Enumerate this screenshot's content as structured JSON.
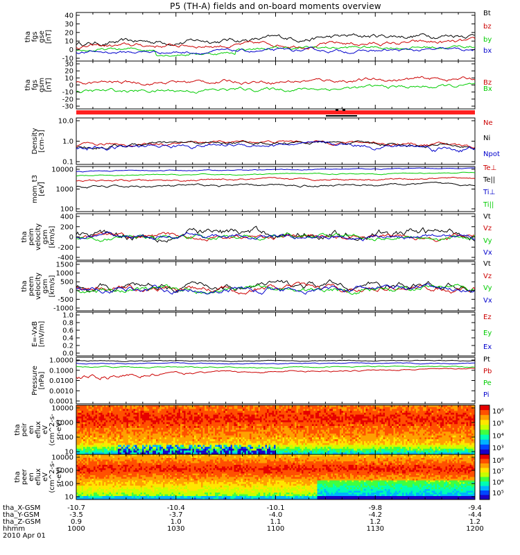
{
  "title": "P5 (TH-A) fields and on-board moments overview",
  "date": "2010 Apr 01",
  "chart_data": [
    {
      "type": "line",
      "panel": "fgs_gse",
      "ylabel": [
        "tha",
        "fgs",
        "gse",
        "[nT]"
      ],
      "yticks": [
        "40",
        "30",
        "20",
        "10",
        "0",
        "-10"
      ],
      "ylim": [
        -10,
        40
      ],
      "series": [
        {
          "name": "Bt",
          "color": "#000000"
        },
        {
          "name": "bz",
          "color": "#cc0000"
        },
        {
          "name": "by",
          "color": "#00cc00"
        },
        {
          "name": "bx",
          "color": "#0000cc"
        }
      ]
    },
    {
      "type": "line",
      "panel": "fgs_gsm",
      "ylabel": [
        "tha",
        "fgs",
        "gsm",
        "[nT]"
      ],
      "yticks": [
        "30",
        "20",
        "10",
        "0",
        "-10",
        "-20",
        "-30"
      ],
      "ylim": [
        -35,
        30
      ],
      "series": [
        {
          "name": "Bz",
          "color": "#cc0000"
        },
        {
          "name": "Bx",
          "color": "#00cc00"
        }
      ]
    },
    {
      "type": "line",
      "panel": "density",
      "yscale": "log",
      "ylabel": [
        "Density",
        "[cm-3]"
      ],
      "yticks": [
        "10.0",
        "1.0",
        "0.1"
      ],
      "ylim": [
        0.1,
        10
      ],
      "series": [
        {
          "name": "Ne",
          "color": "#cc0000"
        },
        {
          "name": "Ni",
          "color": "#000000"
        },
        {
          "name": "Npot",
          "color": "#0000cc"
        }
      ]
    },
    {
      "type": "line",
      "panel": "temperature",
      "yscale": "log",
      "ylabel": [
        "mom_t3",
        "[eV]"
      ],
      "yticks": [
        "10000",
        "1000",
        "100"
      ],
      "ylim": [
        100,
        10000
      ],
      "series": [
        {
          "name": "Te⊥",
          "color": "#cc0000"
        },
        {
          "name": "Te||",
          "color": "#000000"
        },
        {
          "name": "Ti⊥",
          "color": "#0000cc"
        },
        {
          "name": "Ti||",
          "color": "#00cc00"
        }
      ]
    },
    {
      "type": "line",
      "panel": "peim_velocity",
      "ylabel": [
        "tha",
        "peim",
        "velocity",
        "gsm",
        "[km/s]"
      ],
      "yticks": [
        "400",
        "200",
        "0",
        "-200",
        "-400"
      ],
      "ylim": [
        -400,
        400
      ],
      "series": [
        {
          "name": "Vt",
          "color": "#000000"
        },
        {
          "name": "Vz",
          "color": "#cc0000"
        },
        {
          "name": "Vy",
          "color": "#00cc00"
        },
        {
          "name": "Vx",
          "color": "#0000cc"
        }
      ]
    },
    {
      "type": "line",
      "panel": "peem_velocity",
      "ylabel": [
        "tha",
        "peem",
        "velocity",
        "gsm",
        "[km/s]"
      ],
      "yticks": [
        "1500",
        "1000",
        "500",
        "0",
        "-500",
        "-1000"
      ],
      "ylim": [
        -1200,
        1500
      ],
      "series": [
        {
          "name": "Vt",
          "color": "#000000"
        },
        {
          "name": "Vz",
          "color": "#cc0000"
        },
        {
          "name": "Vy",
          "color": "#00cc00"
        },
        {
          "name": "Vx",
          "color": "#0000cc"
        }
      ]
    },
    {
      "type": "line",
      "panel": "efield",
      "ylabel": [
        "E=-VxB",
        "[mV/m]"
      ],
      "yticks": [
        "1.0",
        "0.8",
        "0.6",
        "0.4",
        "0.2",
        "0.0"
      ],
      "ylim": [
        0,
        1
      ],
      "series": [
        {
          "name": "Ez",
          "color": "#cc0000"
        },
        {
          "name": "Ey",
          "color": "#00cc00"
        },
        {
          "name": "Ex",
          "color": "#0000cc"
        }
      ]
    },
    {
      "type": "line",
      "panel": "pressure",
      "yscale": "log",
      "ylabel": [
        "Pressure",
        "[nPa]"
      ],
      "yticks": [
        "1.0000",
        "0.1000",
        "0.0100",
        "0.0010",
        "0.0001"
      ],
      "ylim": [
        0.0001,
        1
      ],
      "series": [
        {
          "name": "Pt",
          "color": "#000000"
        },
        {
          "name": "Pb",
          "color": "#cc0000"
        },
        {
          "name": "Pe",
          "color": "#00cc00"
        },
        {
          "name": "Pi",
          "color": "#0000cc"
        }
      ]
    },
    {
      "type": "heatmap",
      "panel": "peir_spectrogram",
      "yscale": "log",
      "ylabel": [
        "tha",
        "peir",
        "en",
        "eflux",
        "eV",
        "(cm^2-s-",
        "sr-eV)"
      ],
      "yticks": [
        "10000",
        "1000",
        "100",
        "10"
      ],
      "ylim": [
        10,
        20000
      ],
      "colorbar": {
        "labels": [
          "10⁶",
          "10⁵",
          "10⁴",
          "10³"
        ],
        "range": [
          1000,
          3000000
        ]
      }
    },
    {
      "type": "heatmap",
      "panel": "peer_spectrogram",
      "yscale": "log",
      "ylabel": [
        "tha",
        "peer",
        "en",
        "eflux",
        "eV",
        "(cm^2-s-",
        "sr-eV)"
      ],
      "yticks": [
        "10000",
        "1000",
        "100",
        "10"
      ],
      "ylim": [
        10,
        20000
      ],
      "colorbar": {
        "labels": [
          "10⁸",
          "10⁷",
          "10⁶",
          "10⁵"
        ],
        "range": [
          30000,
          200000000
        ]
      }
    }
  ],
  "ephemeris": {
    "labels": [
      "tha_X-GSM",
      "tha_Y-GSM",
      "tha_Z-GSM",
      "hhmm"
    ],
    "columns": [
      [
        "-10.7",
        "-3.5",
        "0.9",
        "1000"
      ],
      [
        "-10.4",
        "-3.7",
        "1.0",
        "1030"
      ],
      [
        "-10.1",
        "-4.0",
        "1.1",
        "1100"
      ],
      [
        "-9.8",
        "-4.2",
        "1.2",
        "1130"
      ],
      [
        "-9.4",
        "-4.4",
        "1.2",
        "1200"
      ]
    ]
  }
}
